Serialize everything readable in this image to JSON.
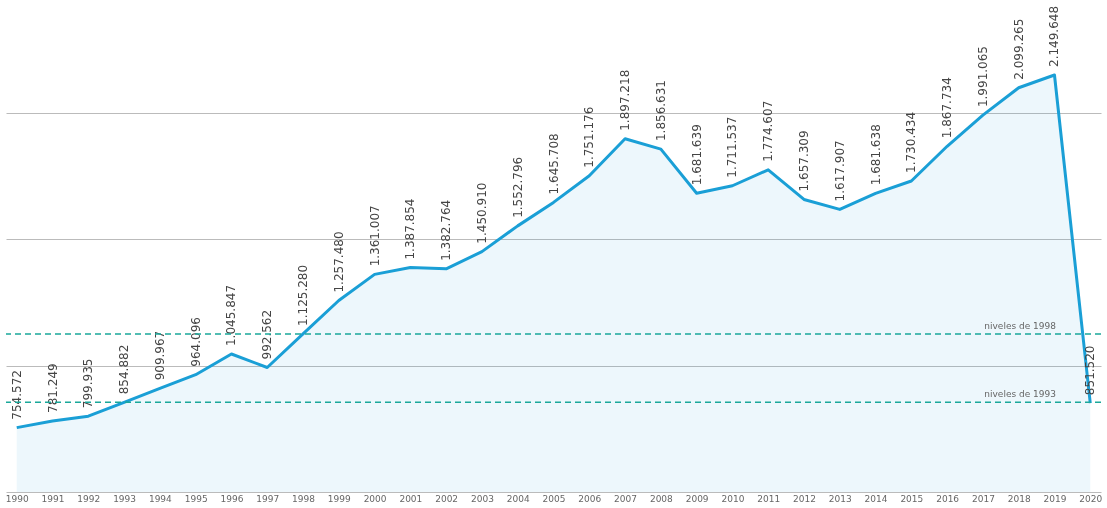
{
  "chart_data": {
    "type": "area",
    "categories": [
      "1990",
      "1991",
      "1992",
      "1993",
      "1994",
      "1995",
      "1996",
      "1997",
      "1998",
      "1999",
      "2000",
      "2001",
      "2002",
      "2003",
      "2004",
      "2005",
      "2006",
      "2007",
      "2008",
      "2009",
      "2010",
      "2011",
      "2012",
      "2013",
      "2014",
      "2015",
      "2016",
      "2017",
      "2018",
      "2019",
      "2020"
    ],
    "series": [
      {
        "color": "#1a9fd6",
        "values": [
          754572,
          781249,
          799935,
          854882,
          909967,
          964096,
          1045847,
          992562,
          1125280,
          1257480,
          1361007,
          1387854,
          1382764,
          1450910,
          1552796,
          1645708,
          1751176,
          1897218,
          1856631,
          1681639,
          1711537,
          1774607,
          1657309,
          1617907,
          1681638,
          1730434,
          1867734,
          1991065,
          2099265,
          2149648,
          851520
        ],
        "value_labels": [
          "754.572",
          "781.249",
          "799.935",
          "854.882",
          "909.967",
          "964.096",
          "1.045.847",
          "992.562",
          "1.125.280",
          "1.257.480",
          "1.361.007",
          "1.387.854",
          "1.382.764",
          "1.450.910",
          "1.552.796",
          "1.645.708",
          "1.751.176",
          "1.897.218",
          "1.856.631",
          "1.681.639",
          "1.711.537",
          "1.774.607",
          "1.657.309",
          "1.617.907",
          "1.681.638",
          "1.730.434",
          "1.867.734",
          "1.991.065",
          "2.099.265",
          "2.149.648",
          "851.520"
        ]
      }
    ],
    "yticks": [
      {
        "value": 500000,
        "label": null
      },
      {
        "value": 1000000,
        "label": null
      },
      {
        "value": 1500000,
        "label": null
      },
      {
        "value": 2000000,
        "label": null
      }
    ],
    "grid": "y",
    "marker": "none",
    "line_style": "solid",
    "ref_lines": [
      {
        "axis": "y",
        "value": 1125280,
        "label": "niveles de 1998",
        "color": "#1aa89a",
        "line_style": "dashed"
      },
      {
        "axis": "y",
        "value": 854882,
        "label": "niveles de 1993",
        "color": "#1aa89a",
        "line_style": "dashed"
      }
    ]
  }
}
